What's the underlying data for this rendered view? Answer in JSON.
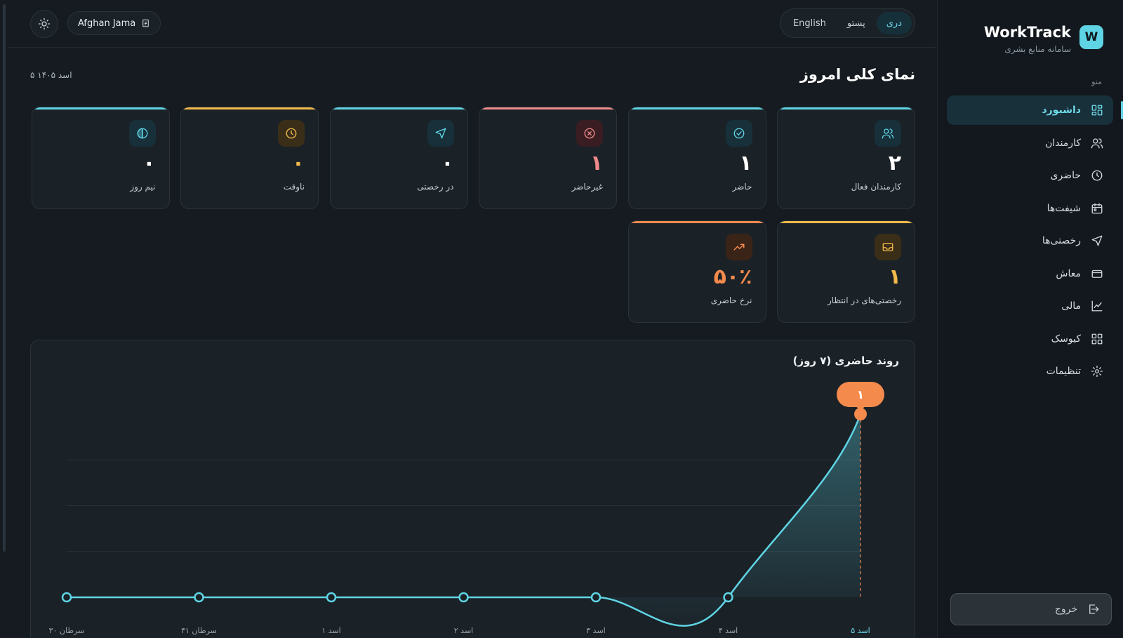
{
  "topbar": {
    "user_name": "Afghan Jama",
    "languages": [
      {
        "label": "دری",
        "active": true
      },
      {
        "label": "پښتو",
        "active": false
      },
      {
        "label": "English",
        "active": false
      }
    ]
  },
  "sidebar": {
    "brand_logo": "W",
    "brand_title": "WorkTrack",
    "brand_subtitle": "سامانه منابع بشری",
    "menu_label": "منو",
    "items": [
      {
        "label": "داشبورد",
        "icon": "dashboard-icon",
        "active": true
      },
      {
        "label": "کارمندان",
        "icon": "users-icon",
        "active": false
      },
      {
        "label": "حاضری",
        "icon": "clock-icon",
        "active": false
      },
      {
        "label": "شیفت‌ها",
        "icon": "calendar-icon",
        "active": false
      },
      {
        "label": "رخصتی‌ها",
        "icon": "send-icon",
        "active": false
      },
      {
        "label": "معاش",
        "icon": "wallet-icon",
        "active": false
      },
      {
        "label": "مالی",
        "icon": "chart-icon",
        "active": false
      },
      {
        "label": "کیوسک",
        "icon": "grid-icon",
        "active": false
      },
      {
        "label": "تنظیمات",
        "icon": "gear-icon",
        "active": false
      }
    ],
    "logout_label": "خروج"
  },
  "main": {
    "title": "نمای کلی امروز",
    "date": "۵ اسد ۱۴۰۵",
    "cards": [
      {
        "label": "کارمندان فعال",
        "value": "۲",
        "icon": "users-icon",
        "color": "#5fd4e4"
      },
      {
        "label": "حاضر",
        "value": "۱",
        "icon": "check-circle-icon",
        "color": "#5fd4e4"
      },
      {
        "label": "غیرحاضر",
        "value": "۱",
        "icon": "x-circle-icon",
        "color": "#f08a8a"
      },
      {
        "label": "در رخصتی",
        "value": "۰",
        "icon": "send-icon",
        "color": "#5fd4e4"
      },
      {
        "label": "ناوقت",
        "value": "۰",
        "icon": "clock-icon",
        "color": "#f2b94b"
      },
      {
        "label": "نیم روز",
        "value": "۰",
        "icon": "half-circle-icon",
        "color": "#5fd4e4"
      },
      {
        "label": "رخصتی‌های در انتظار",
        "value": "۱",
        "icon": "inbox-icon",
        "color": "#f2b94b"
      },
      {
        "label": "نرخ حاضری",
        "value": "۵۰٪",
        "icon": "trending-up-icon",
        "color": "#f58a4d"
      }
    ]
  },
  "chart_data": {
    "type": "line",
    "title": "روند حاضری (۷ روز)",
    "categories": [
      "سرطان ۳۰",
      "سرطان ۳۱",
      "اسد ۱",
      "اسد ۲",
      "اسد ۳",
      "اسد ۴",
      "اسد ۵"
    ],
    "series": [
      {
        "values": [
          0,
          0,
          0,
          0,
          0,
          0,
          1
        ]
      }
    ],
    "ylim": [
      0,
      1
    ],
    "grid": true,
    "tooltip": {
      "category": "اسد ۵",
      "value": "۱"
    },
    "line_color": "#5fd4e4",
    "tooltip_color": "#f58a4d"
  }
}
